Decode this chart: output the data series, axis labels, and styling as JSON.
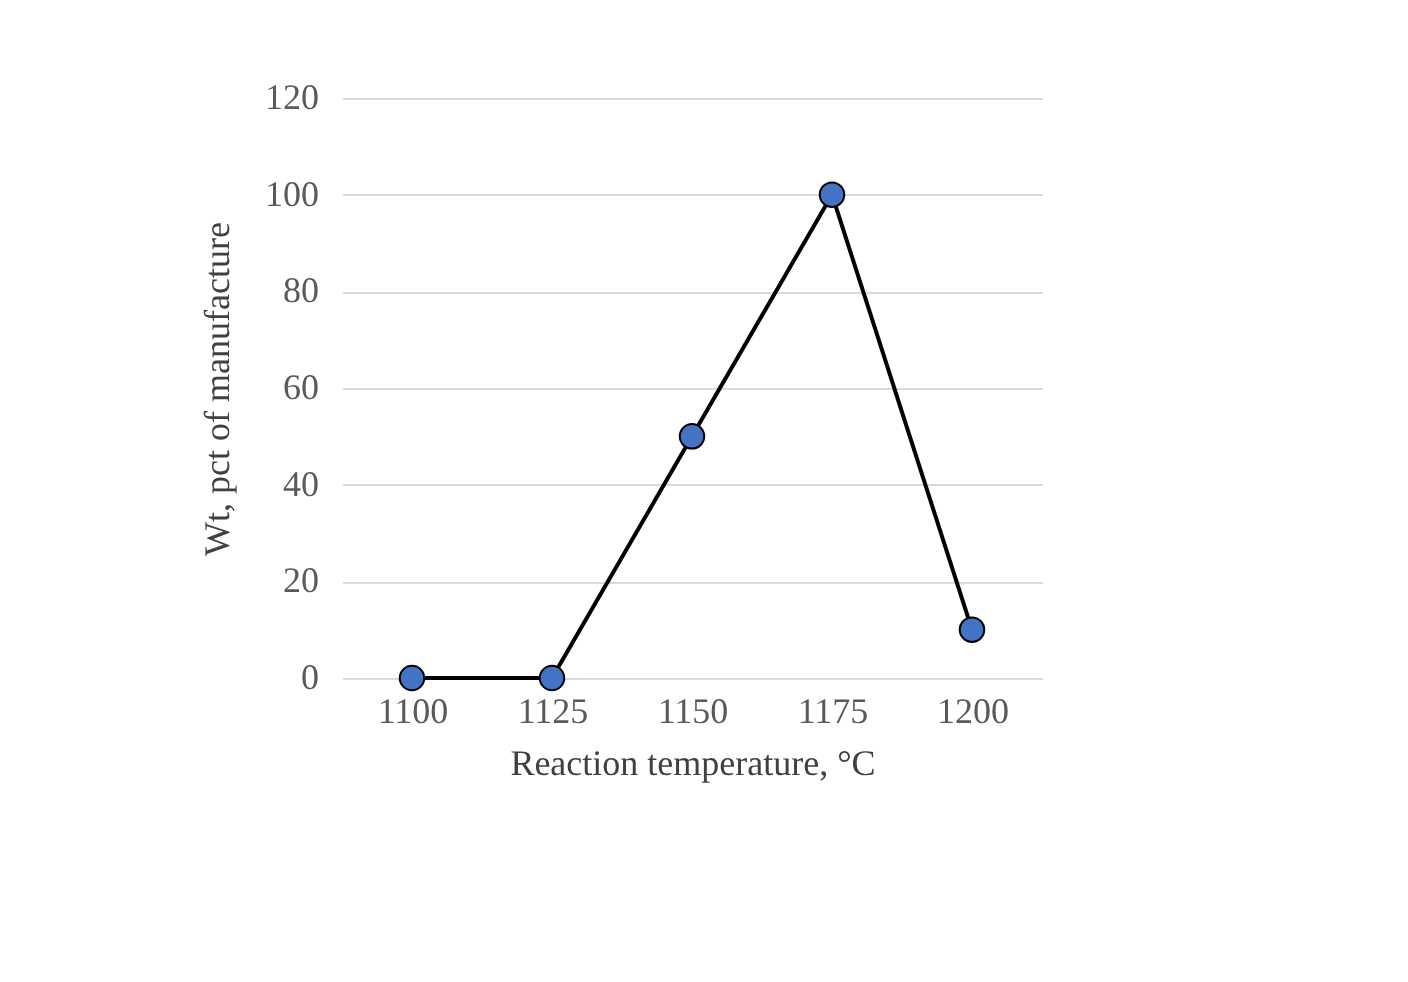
{
  "chart_data": {
    "type": "line",
    "xlabel": "Reaction temperature, °C",
    "ylabel": "Wt, pct of manufacture",
    "categories": [
      "1100",
      "1125",
      "1150",
      "1175",
      "1200"
    ],
    "series": [
      {
        "color": "#000000",
        "colors": [
          "#4472c4",
          "#4472c4",
          "#4472c4",
          "#4472c4",
          "#4472c4"
        ],
        "values": [
          0,
          0,
          50,
          100,
          10
        ]
      }
    ],
    "ylim": [
      0,
      120
    ],
    "yticks": [
      0,
      20,
      40,
      60,
      80,
      100,
      120
    ],
    "grid": "y",
    "marker": "circle",
    "line_style": "solid"
  }
}
